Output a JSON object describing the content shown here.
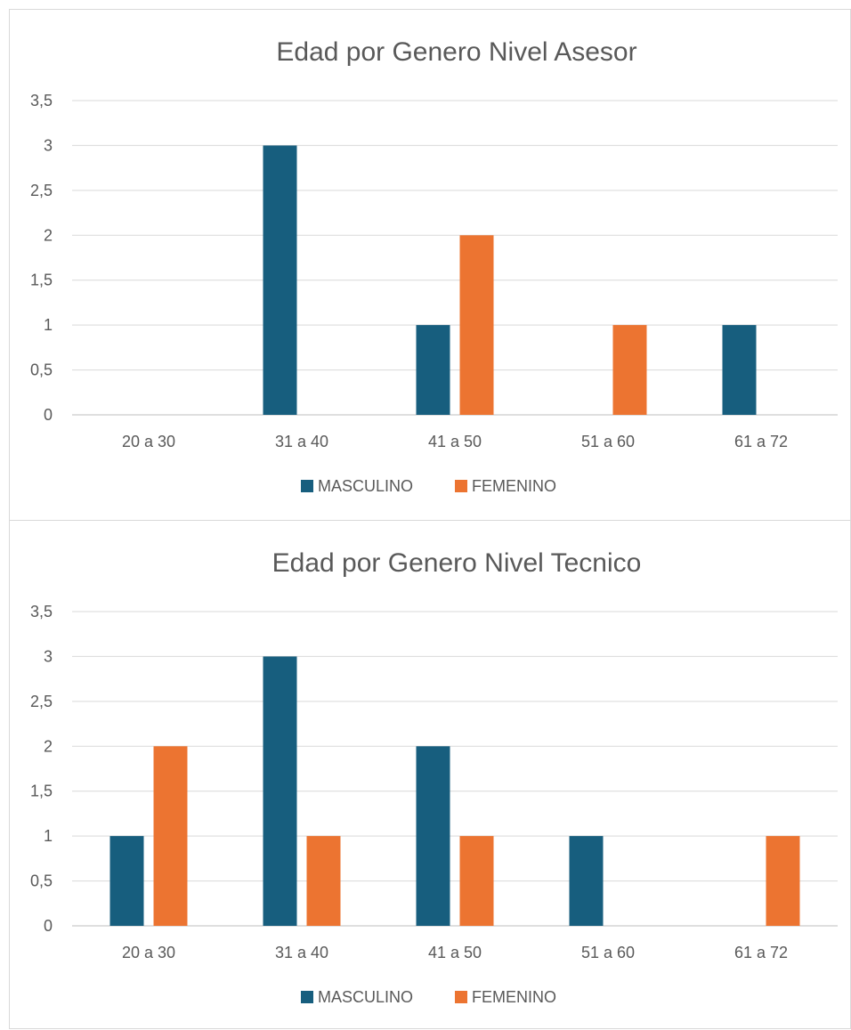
{
  "colors": {
    "masculino": "#175e7e",
    "femenino": "#ec7431",
    "grid": "#d9d9d9",
    "text": "#595959"
  },
  "chart_data": [
    {
      "type": "bar",
      "title": "Edad por Genero Nivel Asesor",
      "categories": [
        "20 a 30",
        "31 a 40",
        "41 a 50",
        "51 a 60",
        "61 a 72"
      ],
      "series": [
        {
          "name": "MASCULINO",
          "color": "#175e7e",
          "values": [
            0,
            3,
            1,
            0,
            1
          ]
        },
        {
          "name": "FEMENINO",
          "color": "#ec7431",
          "values": [
            0,
            0,
            2,
            1,
            0
          ]
        }
      ],
      "yticks": [
        "0",
        "0,5",
        "1",
        "1,5",
        "2",
        "2,5",
        "3",
        "3,5"
      ],
      "ylim": [
        0,
        3.5
      ],
      "grid": true,
      "legend": "bottom"
    },
    {
      "type": "bar",
      "title": "Edad por Genero Nivel Tecnico",
      "categories": [
        "20 a 30",
        "31 a 40",
        "41 a 50",
        "51 a 60",
        "61 a 72"
      ],
      "series": [
        {
          "name": "MASCULINO",
          "color": "#175e7e",
          "values": [
            1,
            3,
            2,
            1,
            0
          ]
        },
        {
          "name": "FEMENINO",
          "color": "#ec7431",
          "values": [
            2,
            1,
            1,
            0,
            1
          ]
        }
      ],
      "yticks": [
        "0",
        "0,5",
        "1",
        "1,5",
        "2",
        "2,5",
        "3",
        "3,5"
      ],
      "ylim": [
        0,
        3.5
      ],
      "grid": true,
      "legend": "bottom"
    }
  ]
}
